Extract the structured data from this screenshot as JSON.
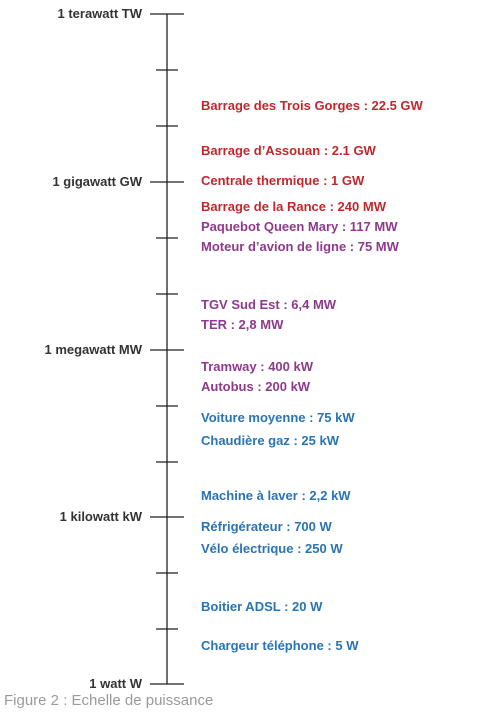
{
  "levels": {
    "tw": "1 terawatt TW",
    "gw": "1 gigawatt GW",
    "mw": "1  megawatt  MW",
    "kw": "1  kilowatt  kW",
    "w": "1  watt  W"
  },
  "items": {
    "trois_gorges": "Barrage des Trois Gorges : 22.5 GW",
    "assouan": "Barrage d’Assouan : 2.1 GW",
    "centrale": "Centrale thermique : 1 GW",
    "rance": "Barrage de la Rance  : 240 MW",
    "queen_mary": "Paquebot Queen Mary : 117 MW",
    "moteur_avion": "Moteur  d’avion de ligne : 75 MW",
    "tgv": "TGV Sud Est : 6,4 MW",
    "ter": "TER : 2,8 MW",
    "tramway": "Tramway : 400 kW",
    "autobus": "Autobus : 200 kW",
    "voiture": "Voiture moyenne : 75 kW",
    "chaudiere": "Chaudière gaz : 25 kW",
    "machine_laver": "Machine à laver : 2,2 kW",
    "refrigerateur": "Réfrigérateur : 700 W",
    "velo": "Vélo électrique : 250 W",
    "adsl": "Boitier ADSL : 20 W",
    "chargeur": "Chargeur téléphone : 5 W"
  },
  "colors": {
    "red": "#c0282d",
    "purple": "#8e3a8c",
    "blue": "#2a74b3"
  },
  "caption": "Figure 2 : Echelle de puissance"
}
